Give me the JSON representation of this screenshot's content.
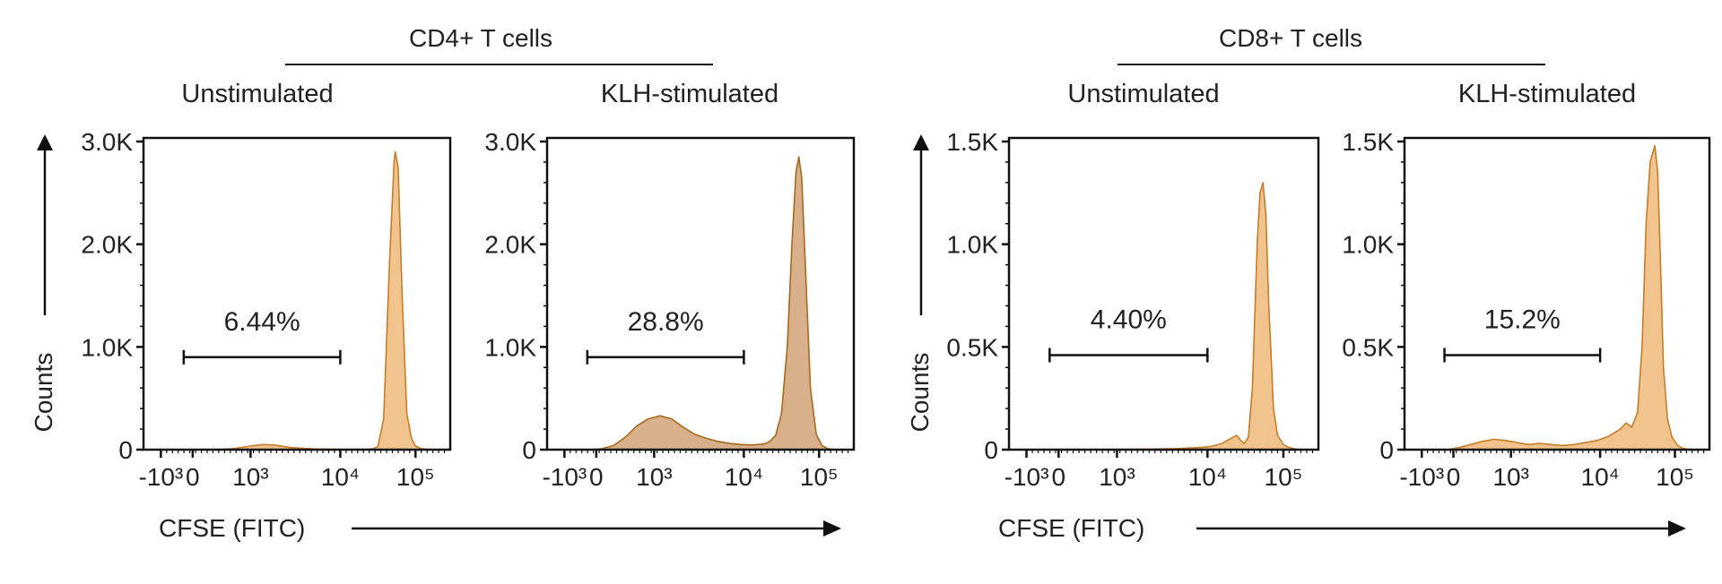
{
  "figure": {
    "colors": {
      "fill": "#f1c48e",
      "stroke": "#c77d27",
      "fill_dark": "#d8b08a",
      "stroke_dark": "#a8691f",
      "axis": "#111111"
    },
    "groups": [
      {
        "title": "CD4+ T cells",
        "x_axis_label": "CFSE (FITC)",
        "y_axis_label": "Counts"
      },
      {
        "title": "CD8+ T cells",
        "x_axis_label": "CFSE (FITC)",
        "y_axis_label": "Counts"
      }
    ]
  },
  "chart_data": [
    {
      "type": "area",
      "group": "CD4+ T cells",
      "title": "Unstimulated",
      "xlabel": "CFSE (FITC)",
      "ylabel": "Counts",
      "x_scale": "biexponential",
      "x_ticks": [
        "-10³",
        "0",
        "10³",
        "10⁴",
        "10⁵"
      ],
      "ylim": [
        0,
        3000
      ],
      "y_ticks": [
        0,
        1000,
        2000,
        3000
      ],
      "y_tick_labels": [
        "0",
        "1.0K",
        "2.0K",
        "3.0K"
      ],
      "gate": {
        "label": "6.44%",
        "x_range": [
          "0",
          "10⁴"
        ],
        "y": 900
      },
      "histogram": {
        "x": [
          -0.1,
          0.35,
          0.7,
          1.0,
          1.2,
          1.4,
          1.7,
          2.1,
          2.5,
          2.8,
          3.0,
          3.05,
          3.12,
          3.2,
          3.3,
          3.4,
          3.48,
          3.5,
          3.55,
          3.62,
          3.7,
          3.78,
          3.85,
          3.95,
          4.05,
          4.15,
          4.3
        ],
        "counts": [
          0,
          0,
          10,
          35,
          50,
          45,
          20,
          6,
          3,
          3,
          4,
          6,
          10,
          30,
          300,
          1800,
          2800,
          2900,
          2750,
          1500,
          350,
          110,
          35,
          10,
          4,
          0,
          0
        ]
      }
    },
    {
      "type": "area",
      "group": "CD4+ T cells",
      "title": "KLH-stimulated",
      "xlabel": "CFSE (FITC)",
      "ylabel": "Counts",
      "x_scale": "biexponential",
      "x_ticks": [
        "-10³",
        "0",
        "10³",
        "10⁴",
        "10⁵"
      ],
      "ylim": [
        0,
        3000
      ],
      "y_ticks": [
        0,
        1000,
        2000,
        3000
      ],
      "y_tick_labels": [
        "0",
        "1.0K",
        "2.0K",
        "3.0K"
      ],
      "gate": {
        "label": "28.8%",
        "x_range": [
          "0",
          "10⁴"
        ],
        "y": 900
      },
      "histogram": {
        "x": [
          -0.1,
          0.1,
          0.3,
          0.5,
          0.7,
          0.9,
          1.1,
          1.3,
          1.5,
          1.7,
          1.9,
          2.1,
          2.3,
          2.5,
          2.7,
          2.9,
          3.0,
          3.1,
          3.2,
          3.3,
          3.38,
          3.45,
          3.5,
          3.55,
          3.62,
          3.7,
          3.8,
          3.9,
          4.0,
          4.1,
          4.3
        ],
        "counts": [
          0,
          10,
          40,
          120,
          230,
          300,
          330,
          300,
          220,
          150,
          110,
          80,
          60,
          50,
          45,
          55,
          80,
          140,
          350,
          1000,
          2000,
          2700,
          2850,
          2650,
          1700,
          600,
          150,
          40,
          10,
          3,
          0
        ]
      }
    },
    {
      "type": "area",
      "group": "CD8+ T cells",
      "title": "Unstimulated",
      "xlabel": "CFSE (FITC)",
      "ylabel": "Counts",
      "x_scale": "biexponential",
      "x_ticks": [
        "-10³",
        "0",
        "10³",
        "10⁴",
        "10⁵"
      ],
      "ylim": [
        0,
        1500
      ],
      "y_ticks": [
        0,
        500,
        1000,
        1500
      ],
      "y_tick_labels": [
        "0",
        "0.5K",
        "1.0K",
        "1.5K"
      ],
      "gate": {
        "label": "4.40%",
        "x_range": [
          "0",
          "10⁴"
        ],
        "y": 460
      },
      "histogram": {
        "x": [
          -0.1,
          0.5,
          1.5,
          2.0,
          2.4,
          2.6,
          2.8,
          2.95,
          3.05,
          3.12,
          3.18,
          3.25,
          3.32,
          3.4,
          3.45,
          3.5,
          3.55,
          3.6,
          3.68,
          3.75,
          3.85,
          3.95,
          4.05,
          4.2
        ],
        "counts": [
          0,
          0,
          2,
          5,
          10,
          15,
          30,
          55,
          70,
          45,
          30,
          60,
          300,
          1000,
          1250,
          1300,
          1150,
          700,
          200,
          70,
          25,
          10,
          3,
          0
        ]
      }
    },
    {
      "type": "area",
      "group": "CD8+ T cells",
      "title": "KLH-stimulated",
      "xlabel": "CFSE (FITC)",
      "ylabel": "Counts",
      "x_scale": "biexponential",
      "x_ticks": [
        "-10³",
        "0",
        "10³",
        "10⁴",
        "10⁵"
      ],
      "ylim": [
        0,
        1500
      ],
      "y_ticks": [
        0,
        500,
        1000,
        1500
      ],
      "y_tick_labels": [
        "0",
        "0.5K",
        "1.0K",
        "1.5K"
      ],
      "gate": {
        "label": "15.2%",
        "x_range": [
          "0",
          "10⁴"
        ],
        "y": 460
      },
      "histogram": {
        "x": [
          -0.1,
          0.1,
          0.3,
          0.5,
          0.7,
          0.9,
          1.1,
          1.3,
          1.5,
          1.7,
          1.9,
          2.1,
          2.3,
          2.5,
          2.7,
          2.9,
          3.0,
          3.1,
          3.2,
          3.28,
          3.35,
          3.42,
          3.5,
          3.55,
          3.6,
          3.65,
          3.72,
          3.8,
          3.9,
          4.0,
          4.2
        ],
        "counts": [
          0,
          10,
          25,
          40,
          50,
          45,
          35,
          25,
          30,
          25,
          20,
          25,
          35,
          45,
          65,
          100,
          130,
          110,
          180,
          500,
          1100,
          1400,
          1480,
          1350,
          900,
          400,
          150,
          60,
          20,
          5,
          0
        ]
      }
    }
  ]
}
